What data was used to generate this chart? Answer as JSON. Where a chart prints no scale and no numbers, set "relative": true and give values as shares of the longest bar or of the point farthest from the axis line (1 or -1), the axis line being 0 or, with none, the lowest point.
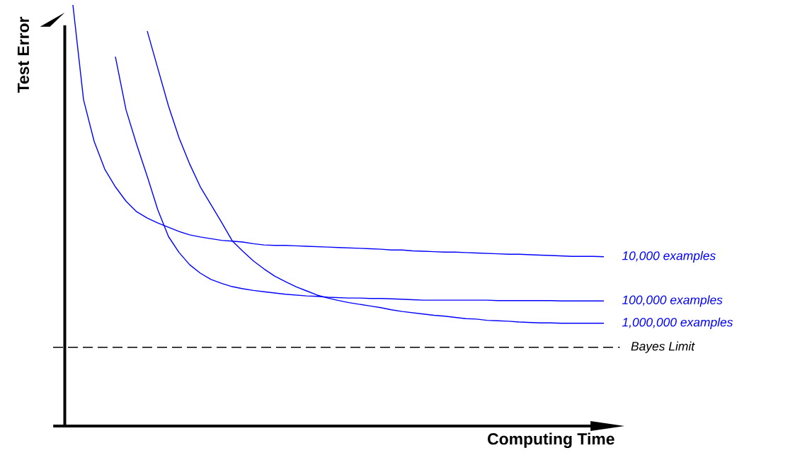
{
  "chart_data": {
    "type": "line",
    "xlabel": "Computing Time",
    "ylabel": "Test Error",
    "relative": true,
    "categories": [
      null,
      null,
      null,
      null,
      null,
      null,
      null,
      null,
      null,
      null,
      null,
      null,
      null,
      null,
      null,
      null,
      null,
      null,
      null,
      null,
      null,
      null,
      null,
      null,
      null,
      null,
      null,
      null,
      null,
      null,
      null,
      null,
      null,
      null,
      null,
      null,
      null,
      null,
      null,
      null,
      null,
      null,
      null,
      null,
      null,
      null,
      null,
      null,
      null,
      null,
      null
    ],
    "series": [
      {
        "name": "10,000 examples",
        "color": "#0000ff",
        "values": [
          1.0,
          0.775,
          0.676,
          0.61,
          0.568,
          0.534,
          0.509,
          0.494,
          0.482,
          0.472,
          0.462,
          0.454,
          0.449,
          0.445,
          0.441,
          0.439,
          0.437,
          0.433,
          0.43,
          0.429,
          0.429,
          0.428,
          0.427,
          0.426,
          0.425,
          0.424,
          0.423,
          0.422,
          0.421,
          0.42,
          0.418,
          0.418,
          0.416,
          0.415,
          0.414,
          0.413,
          0.413,
          0.412,
          0.411,
          0.41,
          0.409,
          0.408,
          0.408,
          0.407,
          0.406,
          0.405,
          0.404,
          0.403,
          0.403,
          0.403,
          0.402
        ]
      },
      {
        "name": "100,000 examples",
        "color": "#0000ff",
        "values": [
          null,
          null,
          null,
          null,
          0.877,
          0.751,
          0.669,
          0.593,
          0.513,
          0.45,
          0.412,
          0.383,
          0.363,
          0.348,
          0.339,
          0.331,
          0.326,
          0.322,
          0.319,
          0.316,
          0.313,
          0.311,
          0.309,
          0.308,
          0.306,
          0.305,
          0.304,
          0.304,
          0.303,
          0.303,
          0.302,
          0.301,
          0.3,
          0.299,
          0.299,
          0.299,
          0.299,
          0.299,
          0.299,
          0.299,
          0.298,
          0.298,
          0.298,
          0.298,
          0.298,
          0.298,
          0.297,
          0.297,
          0.297,
          0.297,
          0.297
        ]
      },
      {
        "name": "1,000,000 examples",
        "color": "#0000ff",
        "values": [
          null,
          null,
          null,
          null,
          null,
          null,
          null,
          0.938,
          0.849,
          0.76,
          0.684,
          0.622,
          0.568,
          0.526,
          0.484,
          0.44,
          0.415,
          0.392,
          0.373,
          0.356,
          0.343,
          0.331,
          0.321,
          0.311,
          0.304,
          0.298,
          0.293,
          0.289,
          0.285,
          0.281,
          0.276,
          0.272,
          0.269,
          0.266,
          0.263,
          0.261,
          0.258,
          0.255,
          0.254,
          0.251,
          0.25,
          0.249,
          0.247,
          0.246,
          0.245,
          0.245,
          0.244,
          0.244,
          0.244,
          0.244,
          0.244
        ]
      }
    ],
    "ref_lines": [
      {
        "axis": "y",
        "value": 0.187,
        "label": "Bayes Limit",
        "color": "#000000",
        "line_style": "dashed"
      }
    ]
  }
}
